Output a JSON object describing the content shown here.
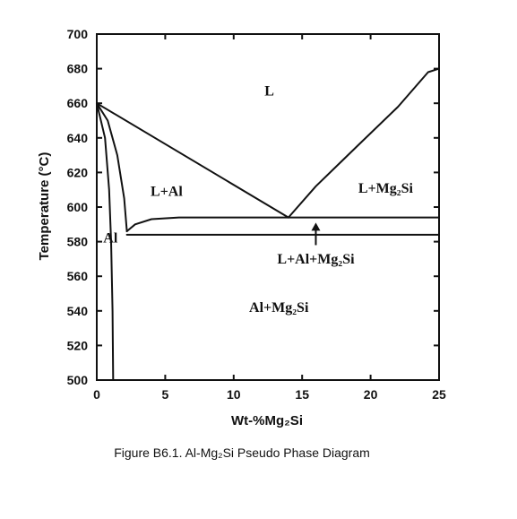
{
  "chart_data": {
    "type": "line",
    "title": "",
    "xlabel": "Wt-%Mg₂Si",
    "ylabel": "Temperature (°C)",
    "xlim": [
      0,
      25
    ],
    "ylim": [
      500,
      700
    ],
    "x_ticks": [
      0,
      5,
      10,
      15,
      20,
      25
    ],
    "y_ticks": [
      500,
      520,
      540,
      560,
      580,
      600,
      620,
      640,
      660,
      680,
      700
    ],
    "grid": false,
    "series": [
      {
        "x": [
          0,
          14
        ],
        "y": [
          660,
          594
        ]
      },
      {
        "x": [
          14,
          16,
          19,
          22,
          24.2,
          25
        ],
        "y": [
          594,
          612,
          635,
          658,
          678,
          680
        ]
      },
      {
        "x": [
          2.2,
          2.8,
          4,
          6,
          10,
          14,
          25
        ],
        "y": [
          586,
          590,
          593,
          594,
          594,
          594,
          594
        ]
      },
      {
        "x": [
          2.2,
          25
        ],
        "y": [
          584,
          584
        ]
      },
      {
        "x": [
          0,
          0.8,
          1.5,
          2.0,
          2.2
        ],
        "y": [
          660,
          650,
          630,
          605,
          586
        ]
      },
      {
        "x": [
          0,
          0.6,
          0.9,
          1.05,
          1.15,
          1.2
        ],
        "y": [
          660,
          640,
          610,
          580,
          540,
          500
        ]
      }
    ],
    "annotations": [
      {
        "text": "L",
        "x": 12.6,
        "y": 667
      },
      {
        "text": "L+Al",
        "x": 5.1,
        "y": 609
      },
      {
        "text": "L+Mg₂Si",
        "x": 21.1,
        "y": 611
      },
      {
        "text": "Al",
        "x": 1.0,
        "y": 582
      },
      {
        "text": "L+Al+Mg₂Si",
        "x": 16.0,
        "y": 570
      },
      {
        "text": "Al+Mg₂Si",
        "x": 13.3,
        "y": 542
      }
    ],
    "arrow": {
      "from": [
        16,
        578
      ],
      "to": [
        16,
        591
      ]
    }
  },
  "caption": "Figure B6.1. Al-Mg₂Si Pseudo Phase Diagram"
}
